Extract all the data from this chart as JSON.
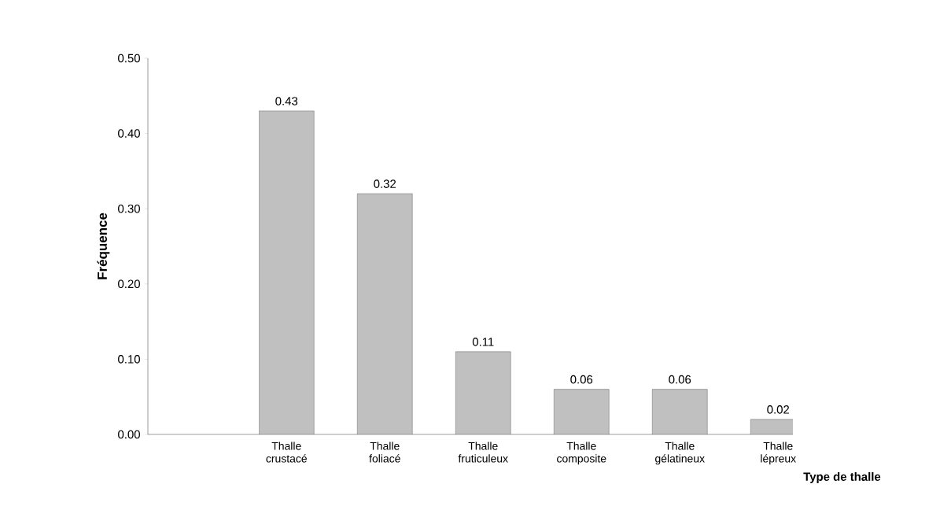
{
  "chart_data": {
    "type": "bar",
    "xlabel": "Type de thalle",
    "ylabel": "Fréquence",
    "categories": [
      "Thalle crustacé",
      "Thalle foliacé",
      "Thalle fruticuleux",
      "Thalle composite",
      "Thalle gélatineux",
      "Thalle lépreux"
    ],
    "values": [
      0.43,
      0.32,
      0.11,
      0.06,
      0.06,
      0.02
    ],
    "color": "#c0c0c0",
    "data_labels": true,
    "ylim": [
      0,
      0.5
    ],
    "yticks": [
      {
        "value": 0,
        "label": "0.00"
      },
      {
        "value": 0.1,
        "label": "0.10"
      },
      {
        "value": 0.2,
        "label": "0.20"
      },
      {
        "value": 0.3,
        "label": "0.30"
      },
      {
        "value": 0.4,
        "label": "0.40"
      },
      {
        "value": 0.5,
        "label": "0.50"
      }
    ],
    "grid": false
  }
}
